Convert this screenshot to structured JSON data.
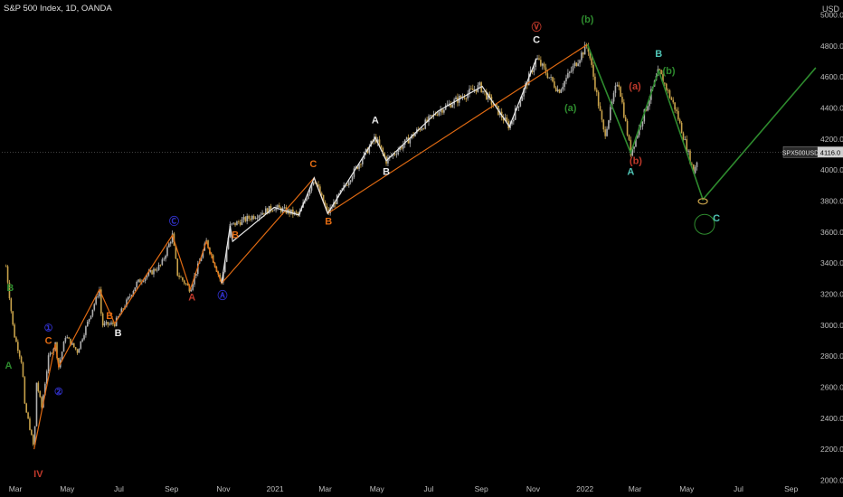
{
  "header": {
    "symbol_title": "S&P 500 Index, 1D, OANDA",
    "currency": "USD"
  },
  "price_tag": {
    "ticker": "SPX500USD",
    "value": "4116.0"
  },
  "colors": {
    "background": "#000000",
    "axis_text": "#bdbdbd",
    "candle": "#c8a24a",
    "orange_wave": "#e06a12",
    "white_wave": "#e8e8e8",
    "green_wave": "#2e8b2e",
    "teal_label": "#4fc3b5",
    "red_label": "#c0392b",
    "blue_label": "#3030c8"
  },
  "chart_data": {
    "type": "line",
    "title": "S&P 500 Index, 1D, OANDA",
    "xlabel": "",
    "ylabel": "",
    "ylim": [
      1950,
      5050
    ],
    "x_ticks": [
      "Mar",
      "May",
      "Jul",
      "Sep",
      "Nov",
      "2021",
      "Mar",
      "May",
      "Jul",
      "Sep",
      "Nov",
      "2022",
      "Mar",
      "May",
      "Jul",
      "Sep"
    ],
    "y_ticks": [
      2000.0,
      2200.0,
      2400.0,
      2600.0,
      2800.0,
      3000.0,
      3200.0,
      3400.0,
      3600.0,
      3800.0,
      4000.0,
      4200.0,
      4400.0,
      4600.0,
      4800.0,
      5000.0
    ],
    "last_price": 4116.0,
    "grid": false,
    "series": [
      {
        "kind": "price",
        "points": [
          [
            "2020-02-19",
            3380
          ],
          [
            "2020-02-28",
            2950
          ],
          [
            "2020-03-09",
            2750
          ],
          [
            "2020-03-12",
            2480
          ],
          [
            "2020-03-16",
            2390
          ],
          [
            "2020-03-23",
            2200
          ],
          [
            "2020-03-26",
            2630
          ],
          [
            "2020-04-01",
            2470
          ],
          [
            "2020-04-09",
            2790
          ],
          [
            "2020-04-17",
            2880
          ],
          [
            "2020-04-21",
            2730
          ],
          [
            "2020-04-29",
            2930
          ],
          [
            "2020-05-13",
            2830
          ],
          [
            "2020-06-08",
            3230
          ],
          [
            "2020-06-11",
            3000
          ],
          [
            "2020-06-26",
            3010
          ],
          [
            "2020-07-22",
            3270
          ],
          [
            "2020-08-20",
            3390
          ],
          [
            "2020-09-02",
            3580
          ],
          [
            "2020-09-08",
            3330
          ],
          [
            "2020-09-23",
            3230
          ],
          [
            "2020-10-12",
            3540
          ],
          [
            "2020-10-30",
            3270
          ],
          [
            "2020-11-09",
            3640
          ],
          [
            "2020-12-31",
            3760
          ],
          [
            "2021-01-29",
            3710
          ],
          [
            "2021-02-16",
            3950
          ],
          [
            "2021-03-04",
            3720
          ],
          [
            "2021-04-29",
            4210
          ],
          [
            "2021-05-12",
            4060
          ],
          [
            "2021-07-12",
            4380
          ],
          [
            "2021-08-30",
            4540
          ],
          [
            "2021-10-04",
            4280
          ],
          [
            "2021-11-05",
            4720
          ],
          [
            "2021-12-01",
            4510
          ],
          [
            "2022-01-04",
            4810
          ],
          [
            "2022-01-24",
            4220
          ],
          [
            "2022-02-09",
            4590
          ],
          [
            "2022-02-24",
            4110
          ],
          [
            "2022-03-29",
            4640
          ],
          [
            "2022-04-18",
            4390
          ],
          [
            "2022-05-09",
            3990
          ],
          [
            "2022-05-13",
            4060
          ]
        ]
      },
      {
        "kind": "orange-wave",
        "points": [
          [
            "2020-03-23",
            2200
          ],
          [
            "2020-04-17",
            2880
          ],
          [
            "2020-04-21",
            2730
          ],
          [
            "2020-06-08",
            3230
          ],
          [
            "2020-06-26",
            3010
          ],
          [
            "2020-09-02",
            3580
          ],
          [
            "2020-09-23",
            3230
          ],
          [
            "2020-10-12",
            3540
          ],
          [
            "2020-10-30",
            3270
          ],
          [
            "2021-02-16",
            3950
          ],
          [
            "2021-03-04",
            3720
          ],
          [
            "2022-01-04",
            4810
          ]
        ]
      },
      {
        "kind": "white-wave",
        "points": [
          [
            "2020-10-30",
            3270
          ],
          [
            "2020-11-09",
            3640
          ],
          [
            "2020-11-12",
            3540
          ],
          [
            "2020-12-31",
            3760
          ],
          [
            "2021-01-29",
            3710
          ],
          [
            "2021-02-16",
            3950
          ],
          [
            "2021-03-04",
            3720
          ],
          [
            "2021-04-29",
            4210
          ],
          [
            "2021-05-12",
            4060
          ],
          [
            "2021-07-12",
            4380
          ],
          [
            "2021-09-02",
            4540
          ],
          [
            "2021-10-04",
            4280
          ],
          [
            "2021-11-05",
            4720
          ]
        ]
      },
      {
        "kind": "green-wave",
        "points": [
          [
            "2022-01-04",
            4810
          ],
          [
            "2022-02-24",
            4110
          ],
          [
            "2022-03-29",
            4640
          ],
          [
            "2022-05-20",
            3810
          ],
          [
            "2022-09-30",
            4660
          ]
        ]
      }
    ],
    "annotations": [
      {
        "text": "Ⓥ",
        "date": "2021-11-05",
        "price": 4900,
        "color": "#c0392b"
      },
      {
        "text": "C",
        "date": "2021-11-05",
        "price": 4820,
        "color": "#e8e8e8"
      },
      {
        "text": "(b)",
        "date": "2022-01-04",
        "price": 4950,
        "color": "#2e8b2e"
      },
      {
        "text": "B",
        "date": "2022-03-29",
        "price": 4730,
        "color": "#4fc3b5"
      },
      {
        "text": "(b)",
        "date": "2022-04-10",
        "price": 4620,
        "color": "#2e8b2e"
      },
      {
        "text": "(a)",
        "date": "2022-03-01",
        "price": 4520,
        "color": "#c0392b"
      },
      {
        "text": "(a)",
        "date": "2021-12-15",
        "price": 4380,
        "color": "#2e8b2e"
      },
      {
        "text": "A",
        "date": "2022-02-24",
        "price": 3970,
        "color": "#4fc3b5"
      },
      {
        "text": "(b)",
        "date": "2022-03-02",
        "price": 4040,
        "color": "#c0392b"
      },
      {
        "text": "C",
        "date": "2022-06-05",
        "price": 3670,
        "color": "#4fc3b5"
      },
      {
        "text": "Ⓒ",
        "date": "2020-09-04",
        "price": 3650,
        "color": "#3030c8"
      },
      {
        "text": "B",
        "date": "2020-11-15",
        "price": 3560,
        "color": "#e06a12"
      },
      {
        "text": "Ⓐ",
        "date": "2020-10-31",
        "price": 3170,
        "color": "#3030c8"
      },
      {
        "text": "A",
        "date": "2020-09-25",
        "price": 3160,
        "color": "#c0392b"
      },
      {
        "text": "B",
        "date": "2021-03-05",
        "price": 3650,
        "color": "#e06a12"
      },
      {
        "text": "C",
        "date": "2021-02-15",
        "price": 4020,
        "color": "#e06a12"
      },
      {
        "text": "A",
        "date": "2021-04-29",
        "price": 4300,
        "color": "#e8e8e8"
      },
      {
        "text": "B",
        "date": "2021-05-12",
        "price": 3970,
        "color": "#e8e8e8"
      },
      {
        "text": "①",
        "date": "2020-04-09",
        "price": 2960,
        "color": "#3030c8"
      },
      {
        "text": "C",
        "date": "2020-04-09",
        "price": 2880,
        "color": "#e06a12"
      },
      {
        "text": "②",
        "date": "2020-04-21",
        "price": 2550,
        "color": "#3030c8"
      },
      {
        "text": "IV",
        "date": "2020-03-28",
        "price": 2020,
        "color": "#c0392b"
      },
      {
        "text": "B",
        "date": "2020-02-24",
        "price": 3220,
        "color": "#2e8b2e"
      },
      {
        "text": "A",
        "date": "2020-02-22",
        "price": 2720,
        "color": "#2e8b2e"
      },
      {
        "text": "B",
        "date": "2020-06-20",
        "price": 3040,
        "color": "#e06a12"
      },
      {
        "text": "B",
        "date": "2020-06-30",
        "price": 2930,
        "color": "#e8e8e8"
      }
    ]
  }
}
